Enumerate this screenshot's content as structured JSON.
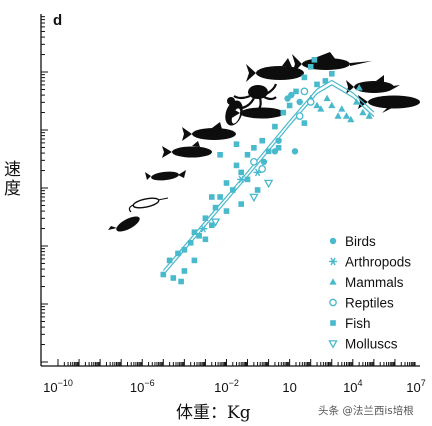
{
  "chart_data": {
    "type": "scatter",
    "panel_label": "d",
    "xlabel": "体重：Kg",
    "ylabel": "速度",
    "xscale": "log",
    "xlim": [
      1e-10,
      10000000.0
    ],
    "ylim": [
      0,
      1
    ],
    "yticks_labeled": false,
    "x_ticks": [
      {
        "value": 1e-10,
        "base": "10",
        "exp": "−10"
      },
      {
        "value": 1e-06,
        "base": "10",
        "exp": "−6"
      },
      {
        "value": 0.01,
        "base": "10",
        "exp": "−2"
      },
      {
        "value": 10,
        "base": "10",
        "exp": ""
      },
      {
        "value": 10000.0,
        "base": "10",
        "exp": "4"
      },
      {
        "value": 10000000.0,
        "base": "10",
        "exp": "7"
      }
    ],
    "fit_curve": [
      [
        1e-05,
        0.265
      ],
      [
        0.001,
        0.405
      ],
      [
        0.1,
        0.545
      ],
      [
        10,
        0.69
      ],
      [
        200,
        0.78
      ],
      [
        1000,
        0.805
      ],
      [
        10000.0,
        0.77
      ],
      [
        100000.0,
        0.715
      ]
    ],
    "legend_position": "bottom-right",
    "colors": {
      "marker": "#49b9cc",
      "silhouette": "#0d0d0d",
      "axis": "#111111"
    },
    "series": [
      {
        "name": "Birds",
        "marker": "filled-circle",
        "points": [
          [
            3,
            0.64
          ],
          [
            8,
            0.76
          ],
          [
            12,
            0.77
          ],
          [
            18,
            0.61
          ],
          [
            0.6,
            0.58
          ],
          [
            2,
            0.61
          ],
          [
            30,
            0.75
          ]
        ]
      },
      {
        "name": "Arthropods",
        "marker": "asterisk",
        "points": [
          [
            0.0008,
            0.39
          ],
          [
            0.05,
            0.53
          ],
          [
            0.3,
            0.55
          ]
        ]
      },
      {
        "name": "Mammals",
        "marker": "filled-triangle",
        "points": [
          [
            300,
            0.73
          ],
          [
            600,
            0.76
          ],
          [
            1000,
            0.74
          ],
          [
            2000,
            0.71
          ],
          [
            3000,
            0.73
          ],
          [
            5000,
            0.71
          ],
          [
            8000,
            0.7
          ],
          [
            15000,
            0.75
          ],
          [
            30000,
            0.72
          ],
          [
            60000,
            0.71
          ],
          [
            100,
            0.76
          ],
          [
            20000,
            0.79
          ],
          [
            200,
            0.74
          ]
        ]
      },
      {
        "name": "Reptiles",
        "marker": "open-circle",
        "points": [
          [
            0.2,
            0.58
          ],
          [
            0.5,
            0.56
          ],
          [
            50,
            0.78
          ],
          [
            30,
            0.71
          ],
          [
            100,
            0.75
          ]
        ]
      },
      {
        "name": "Fish",
        "marker": "filled-square",
        "points": [
          [
            1e-05,
            0.26
          ],
          [
            2e-05,
            0.3
          ],
          [
            3e-05,
            0.25
          ],
          [
            5e-05,
            0.32
          ],
          [
            0.0001,
            0.33
          ],
          [
            0.0002,
            0.35
          ],
          [
            0.0003,
            0.3
          ],
          [
            0.0005,
            0.37
          ],
          [
            0.001,
            0.42
          ],
          [
            0.002,
            0.4
          ],
          [
            0.003,
            0.45
          ],
          [
            0.005,
            0.48
          ],
          [
            0.01,
            0.52
          ],
          [
            0.01,
            0.44
          ],
          [
            0.02,
            0.5
          ],
          [
            0.03,
            0.57
          ],
          [
            0.05,
            0.55
          ],
          [
            0.1,
            0.6
          ],
          [
            0.2,
            0.62
          ],
          [
            0.3,
            0.5
          ],
          [
            0.5,
            0.64
          ],
          [
            1,
            0.61
          ],
          [
            2,
            0.68
          ],
          [
            5,
            0.72
          ],
          [
            10,
            0.74
          ],
          [
            20,
            0.78
          ],
          [
            50,
            0.82
          ],
          [
            100,
            0.85
          ],
          [
            150,
            0.87
          ],
          [
            200,
            0.8
          ],
          [
            500,
            0.81
          ],
          [
            0.005,
            0.6
          ],
          [
            0.002,
            0.48
          ],
          [
            0.05,
            0.46
          ],
          [
            0.0001,
            0.27
          ],
          [
            0.0003,
            0.38
          ],
          [
            0.001,
            0.36
          ],
          [
            3,
            0.62
          ],
          [
            0.1,
            0.53
          ],
          [
            1000,
            0.83
          ],
          [
            50,
            0.69
          ],
          [
            7e-05,
            0.24
          ],
          [
            0.03,
            0.63
          ]
        ]
      },
      {
        "name": "Molluscs",
        "marker": "open-triangle-down",
        "points": [
          [
            0.003,
            0.41
          ],
          [
            0.2,
            0.48
          ],
          [
            1,
            0.52
          ]
        ]
      }
    ]
  },
  "silhouettes": [
    {
      "name": "copepod-silhouette"
    },
    {
      "name": "shrimp-silhouette"
    },
    {
      "name": "krill-silhouette"
    },
    {
      "name": "small-fish-silhouette"
    },
    {
      "name": "medium-fish-silhouette"
    },
    {
      "name": "large-fish-silhouette"
    },
    {
      "name": "penguin-silhouette"
    },
    {
      "name": "octopus-silhouette"
    },
    {
      "name": "tuna-silhouette"
    },
    {
      "name": "marlin-silhouette"
    },
    {
      "name": "dolphin-silhouette"
    },
    {
      "name": "whale-silhouette"
    }
  ],
  "watermark": "头条 @法兰西is培根"
}
